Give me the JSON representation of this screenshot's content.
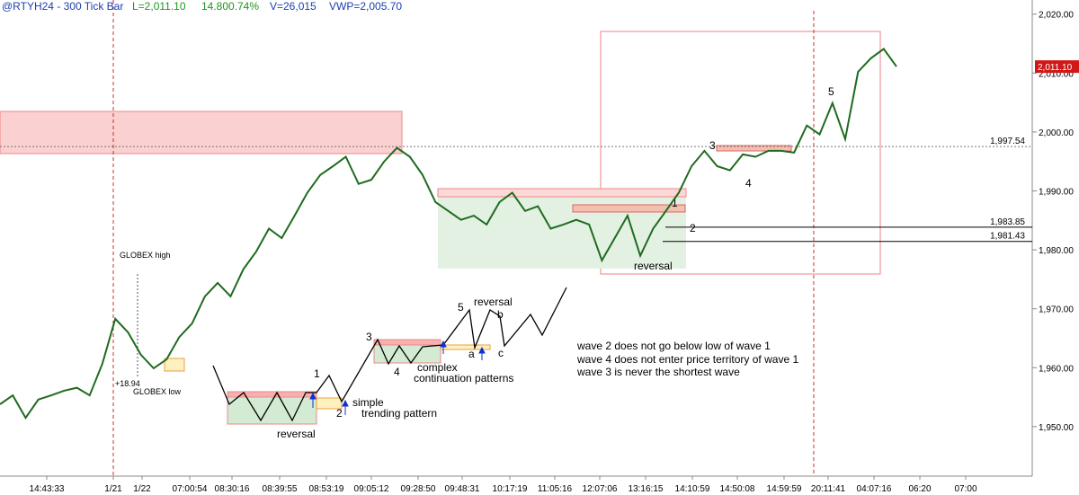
{
  "chart_data": {
    "type": "line",
    "title": "@RTYH24 - 300 Tick Bar",
    "header_stats": [
      "L=2,011.10",
      "14.80",
      "0.74%",
      "V=26,015",
      "VWP=2,005.70"
    ],
    "color": "#1f6b1f",
    "values": [
      1953.8,
      1955.3,
      1951.5,
      1954.6,
      1955.3,
      1956.1,
      1956.6,
      1955.3,
      1960.7,
      1968.3,
      1966.0,
      1962.2,
      1959.9,
      1961.4,
      1965.2,
      1967.5,
      1972.1,
      1974.4,
      1972.1,
      1976.7,
      1979.7,
      1983.6,
      1982.0,
      1985.8,
      1989.7,
      1992.7,
      1994.2,
      1995.8,
      1991.2,
      1991.9,
      1995.0,
      1997.3,
      1995.8,
      1992.7,
      1988.1,
      1986.6,
      1985.1,
      1985.8,
      1984.3,
      1988.1,
      1989.7,
      1986.6,
      1987.4,
      1983.6,
      1984.3,
      1985.1,
      1984.3,
      1978.2,
      1982.0,
      1985.8,
      1979.0,
      1983.6,
      1986.6,
      1989.7,
      1994.2,
      1996.8,
      1994.2,
      1993.5,
      1996.2,
      1995.8,
      1996.8,
      1996.8,
      1996.5,
      2001.1,
      1999.6,
      2004.9,
      1998.8,
      2010.2,
      2012.5,
      2014.1,
      2011.1
    ],
    "ylim": [
      1941.6,
      2022.4
    ],
    "yticks": [
      {
        "value": 1950,
        "label": "1,950.00"
      },
      {
        "value": 1960,
        "label": "1,960.00"
      },
      {
        "value": 1970,
        "label": "1,970.00"
      },
      {
        "value": 1980,
        "label": "1,980.00"
      },
      {
        "value": 1990,
        "label": "1,990.00"
      },
      {
        "value": 2000,
        "label": "2,000.00"
      },
      {
        "value": 2010,
        "label": "2,010.00"
      },
      {
        "value": 2020,
        "label": "2,020.00"
      }
    ],
    "x_axis_labels": [
      "14:43:33",
      "1/21",
      "1/22",
      "07:00:54",
      "08:30:16",
      "08:39:55",
      "08:53:19",
      "09:05:12",
      "09:28:50",
      "09:48:31",
      "10:17:19",
      "11:05:16",
      "12:07:06",
      "13:16:15",
      "14:10:59",
      "14:50:08",
      "14:59:59",
      "20:11:41",
      "04:07:16",
      "06:20",
      "07:00"
    ],
    "levels": [
      {
        "value": 1997.54,
        "label": "1,997.54"
      },
      {
        "value": 1983.85,
        "label": "1,983.85"
      },
      {
        "value": 1981.43,
        "label": "1,981.43"
      }
    ],
    "last": {
      "value": 2011.1,
      "label": "2,011.10"
    },
    "annotations": [
      "GLOBEX high",
      "GLOBEX low",
      "+18.94",
      "1",
      "2",
      "3",
      "4",
      "5",
      "reversal",
      "1",
      "2",
      "3",
      "4",
      "5",
      "reversal",
      "simple",
      "trending pattern",
      "complex",
      "continuation patterns",
      "a",
      "b",
      "c",
      "reversal",
      "wave 2 does not go below low of wave 1",
      "wave 4 does not enter price territory of wave 1",
      "wave 3 is never the shortest wave"
    ]
  }
}
